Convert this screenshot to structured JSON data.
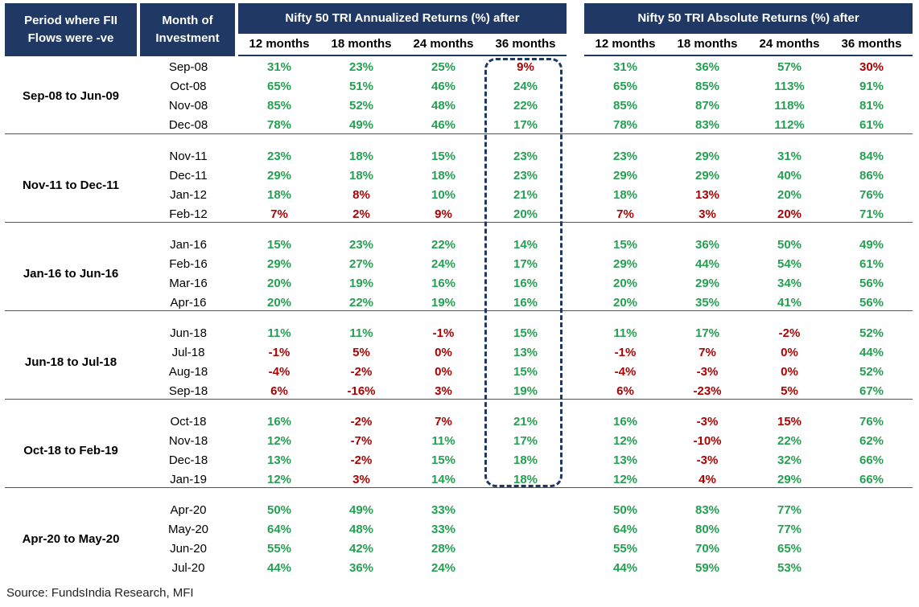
{
  "header": {
    "period_title": "Period where FII Flows were -ve",
    "month_title": "Month of Investment",
    "annualized_title": "Nifty 50 TRI Annualized Returns (%) after",
    "absolute_title": "Nifty 50 TRI Absolute Returns (%) after",
    "sub_annualized": [
      "12 months",
      "18 months",
      "24 months",
      "36 months"
    ],
    "sub_absolute": [
      "12 months",
      "18 months",
      "24 months",
      "36 months"
    ]
  },
  "colors": {
    "header_bg": "#1f3864",
    "positive": "#22a150",
    "negative": "#b00000"
  },
  "groups": [
    {
      "period": "Sep-08 to Jun-09",
      "rows": [
        {
          "month": "Sep-08",
          "ann": [
            "31%",
            "23%",
            "25%",
            "9%"
          ],
          "ann_neg": [
            false,
            false,
            false,
            true
          ],
          "abs": [
            "31%",
            "36%",
            "57%",
            "30%"
          ],
          "abs_neg": [
            false,
            false,
            false,
            true
          ]
        },
        {
          "month": "Oct-08",
          "ann": [
            "65%",
            "51%",
            "46%",
            "24%"
          ],
          "ann_neg": [
            false,
            false,
            false,
            false
          ],
          "abs": [
            "65%",
            "85%",
            "113%",
            "91%"
          ],
          "abs_neg": [
            false,
            false,
            false,
            false
          ]
        },
        {
          "month": "Nov-08",
          "ann": [
            "85%",
            "52%",
            "48%",
            "22%"
          ],
          "ann_neg": [
            false,
            false,
            false,
            false
          ],
          "abs": [
            "85%",
            "87%",
            "118%",
            "81%"
          ],
          "abs_neg": [
            false,
            false,
            false,
            false
          ]
        },
        {
          "month": "Dec-08",
          "ann": [
            "78%",
            "49%",
            "46%",
            "17%"
          ],
          "ann_neg": [
            false,
            false,
            false,
            false
          ],
          "abs": [
            "78%",
            "83%",
            "112%",
            "61%"
          ],
          "abs_neg": [
            false,
            false,
            false,
            false
          ]
        }
      ]
    },
    {
      "period": "Nov-11 to Dec-11",
      "rows": [
        {
          "month": "Nov-11",
          "ann": [
            "23%",
            "18%",
            "15%",
            "23%"
          ],
          "ann_neg": [
            false,
            false,
            false,
            false
          ],
          "abs": [
            "23%",
            "29%",
            "31%",
            "84%"
          ],
          "abs_neg": [
            false,
            false,
            false,
            false
          ]
        },
        {
          "month": "Dec-11",
          "ann": [
            "29%",
            "18%",
            "18%",
            "23%"
          ],
          "ann_neg": [
            false,
            false,
            false,
            false
          ],
          "abs": [
            "29%",
            "29%",
            "40%",
            "86%"
          ],
          "abs_neg": [
            false,
            false,
            false,
            false
          ]
        },
        {
          "month": "Jan-12",
          "ann": [
            "18%",
            "8%",
            "10%",
            "21%"
          ],
          "ann_neg": [
            false,
            true,
            false,
            false
          ],
          "abs": [
            "18%",
            "13%",
            "20%",
            "76%"
          ],
          "abs_neg": [
            false,
            true,
            false,
            false
          ]
        },
        {
          "month": "Feb-12",
          "ann": [
            "7%",
            "2%",
            "9%",
            "20%"
          ],
          "ann_neg": [
            true,
            true,
            true,
            false
          ],
          "abs": [
            "7%",
            "3%",
            "20%",
            "71%"
          ],
          "abs_neg": [
            true,
            true,
            true,
            false
          ]
        }
      ]
    },
    {
      "period": "Jan-16 to Jun-16",
      "rows": [
        {
          "month": "Jan-16",
          "ann": [
            "15%",
            "23%",
            "22%",
            "14%"
          ],
          "ann_neg": [
            false,
            false,
            false,
            false
          ],
          "abs": [
            "15%",
            "36%",
            "50%",
            "49%"
          ],
          "abs_neg": [
            false,
            false,
            false,
            false
          ]
        },
        {
          "month": "Feb-16",
          "ann": [
            "29%",
            "27%",
            "24%",
            "17%"
          ],
          "ann_neg": [
            false,
            false,
            false,
            false
          ],
          "abs": [
            "29%",
            "44%",
            "54%",
            "61%"
          ],
          "abs_neg": [
            false,
            false,
            false,
            false
          ]
        },
        {
          "month": "Mar-16",
          "ann": [
            "20%",
            "19%",
            "16%",
            "16%"
          ],
          "ann_neg": [
            false,
            false,
            false,
            false
          ],
          "abs": [
            "20%",
            "29%",
            "34%",
            "56%"
          ],
          "abs_neg": [
            false,
            false,
            false,
            false
          ]
        },
        {
          "month": "Apr-16",
          "ann": [
            "20%",
            "22%",
            "19%",
            "16%"
          ],
          "ann_neg": [
            false,
            false,
            false,
            false
          ],
          "abs": [
            "20%",
            "35%",
            "41%",
            "56%"
          ],
          "abs_neg": [
            false,
            false,
            false,
            false
          ]
        }
      ]
    },
    {
      "period": "Jun-18 to Jul-18",
      "rows": [
        {
          "month": "Jun-18",
          "ann": [
            "11%",
            "11%",
            "-1%",
            "15%"
          ],
          "ann_neg": [
            false,
            false,
            true,
            false
          ],
          "abs": [
            "11%",
            "17%",
            "-2%",
            "52%"
          ],
          "abs_neg": [
            false,
            false,
            true,
            false
          ]
        },
        {
          "month": "Jul-18",
          "ann": [
            "-1%",
            "5%",
            "0%",
            "13%"
          ],
          "ann_neg": [
            true,
            true,
            true,
            false
          ],
          "abs": [
            "-1%",
            "7%",
            "0%",
            "44%"
          ],
          "abs_neg": [
            true,
            true,
            true,
            false
          ]
        },
        {
          "month": "Aug-18",
          "ann": [
            "-4%",
            "-2%",
            "0%",
            "15%"
          ],
          "ann_neg": [
            true,
            true,
            true,
            false
          ],
          "abs": [
            "-4%",
            "-3%",
            "0%",
            "52%"
          ],
          "abs_neg": [
            true,
            true,
            true,
            false
          ]
        },
        {
          "month": "Sep-18",
          "ann": [
            "6%",
            "-16%",
            "3%",
            "19%"
          ],
          "ann_neg": [
            true,
            true,
            true,
            false
          ],
          "abs": [
            "6%",
            "-23%",
            "5%",
            "67%"
          ],
          "abs_neg": [
            true,
            true,
            true,
            false
          ]
        }
      ]
    },
    {
      "period": "Oct-18 to Feb-19",
      "rows": [
        {
          "month": "Oct-18",
          "ann": [
            "16%",
            "-2%",
            "7%",
            "21%"
          ],
          "ann_neg": [
            false,
            true,
            true,
            false
          ],
          "abs": [
            "16%",
            "-3%",
            "15%",
            "76%"
          ],
          "abs_neg": [
            false,
            true,
            true,
            false
          ]
        },
        {
          "month": "Nov-18",
          "ann": [
            "12%",
            "-7%",
            "11%",
            "17%"
          ],
          "ann_neg": [
            false,
            true,
            false,
            false
          ],
          "abs": [
            "12%",
            "-10%",
            "22%",
            "62%"
          ],
          "abs_neg": [
            false,
            true,
            false,
            false
          ]
        },
        {
          "month": "Dec-18",
          "ann": [
            "13%",
            "-2%",
            "15%",
            "18%"
          ],
          "ann_neg": [
            false,
            true,
            false,
            false
          ],
          "abs": [
            "13%",
            "-3%",
            "32%",
            "66%"
          ],
          "abs_neg": [
            false,
            true,
            false,
            false
          ]
        },
        {
          "month": "Jan-19",
          "ann": [
            "12%",
            "3%",
            "14%",
            "18%"
          ],
          "ann_neg": [
            false,
            true,
            false,
            false
          ],
          "abs": [
            "12%",
            "4%",
            "29%",
            "66%"
          ],
          "abs_neg": [
            false,
            true,
            false,
            false
          ]
        }
      ]
    },
    {
      "period": "Apr-20 to May-20",
      "rows": [
        {
          "month": "Apr-20",
          "ann": [
            "50%",
            "49%",
            "33%",
            ""
          ],
          "ann_neg": [
            false,
            false,
            false,
            false
          ],
          "abs": [
            "50%",
            "83%",
            "77%",
            ""
          ],
          "abs_neg": [
            false,
            false,
            false,
            false
          ]
        },
        {
          "month": "May-20",
          "ann": [
            "64%",
            "48%",
            "33%",
            ""
          ],
          "ann_neg": [
            false,
            false,
            false,
            false
          ],
          "abs": [
            "64%",
            "80%",
            "77%",
            ""
          ],
          "abs_neg": [
            false,
            false,
            false,
            false
          ]
        },
        {
          "month": "Jun-20",
          "ann": [
            "55%",
            "42%",
            "28%",
            ""
          ],
          "ann_neg": [
            false,
            false,
            false,
            false
          ],
          "abs": [
            "55%",
            "70%",
            "65%",
            ""
          ],
          "abs_neg": [
            false,
            false,
            false,
            false
          ]
        },
        {
          "month": "Jul-20",
          "ann": [
            "44%",
            "36%",
            "24%",
            ""
          ],
          "ann_neg": [
            false,
            false,
            false,
            false
          ],
          "abs": [
            "44%",
            "59%",
            "53%",
            ""
          ],
          "abs_neg": [
            false,
            false,
            false,
            false
          ]
        }
      ]
    }
  ],
  "source": "Source: FundsIndia Research, MFI"
}
